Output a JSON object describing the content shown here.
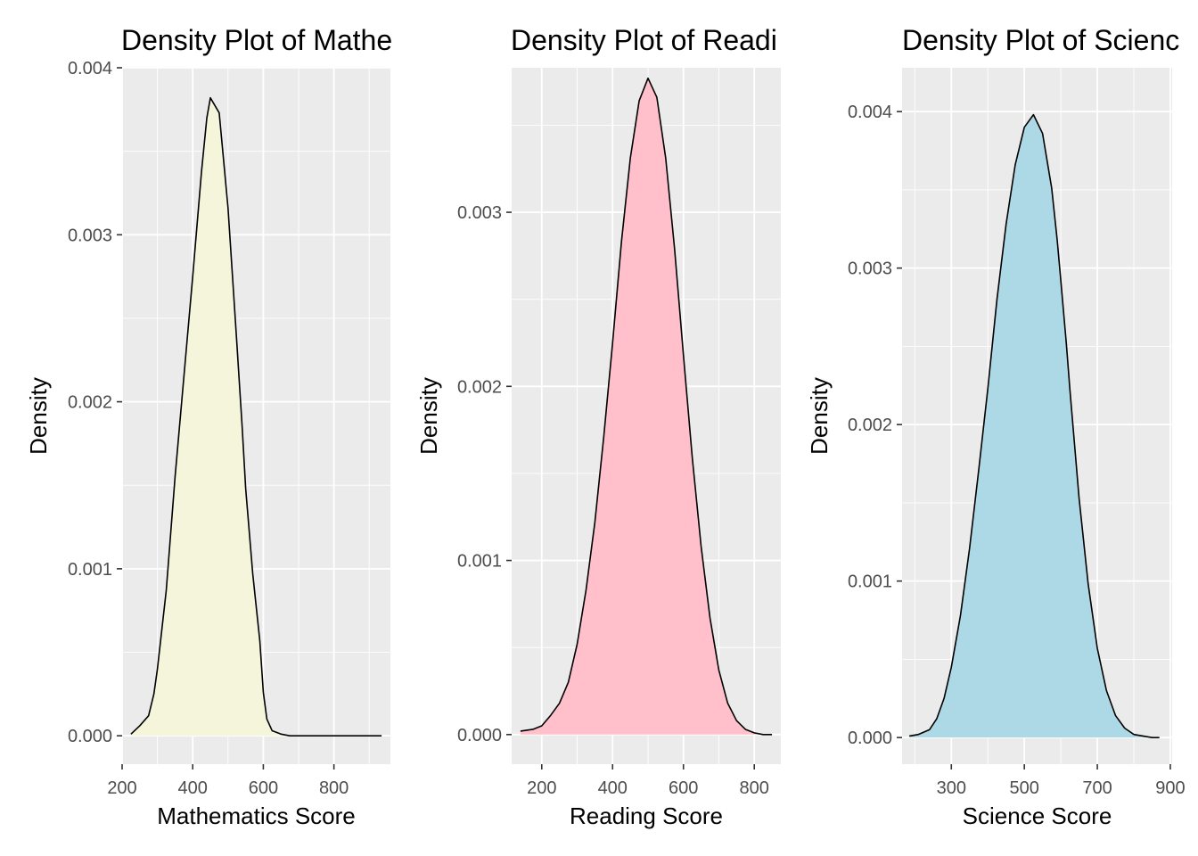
{
  "chart_data": [
    {
      "type": "area",
      "title": "Density Plot of Mathe",
      "xlabel": "Mathematics Score",
      "ylabel": "Density",
      "fill_color": "#f5f5dc",
      "line_color": "#000000",
      "xlim": [
        200,
        960
      ],
      "ylim": [
        -0.00017,
        0.004
      ],
      "x_ticks": [
        200,
        400,
        600,
        800
      ],
      "x_tick_labels": [
        "200",
        "400",
        "600",
        "800"
      ],
      "y_ticks": [
        0,
        0.001,
        0.002,
        0.003,
        0.004
      ],
      "y_tick_labels": [
        "0.000",
        "0.001",
        "0.002",
        "0.003",
        "0.004"
      ],
      "grid": true,
      "x": [
        225,
        250,
        275,
        290,
        300,
        325,
        350,
        375,
        400,
        425,
        440,
        450,
        475,
        500,
        525,
        540,
        550,
        570,
        590,
        600,
        610,
        625,
        650,
        675,
        700,
        725,
        750,
        775,
        800,
        825,
        850,
        875,
        900,
        935
      ],
      "y": [
        1e-05,
        6e-05,
        0.00012,
        0.00025,
        0.0004,
        0.00087,
        0.00155,
        0.00215,
        0.00275,
        0.00338,
        0.0037,
        0.00382,
        0.00373,
        0.00316,
        0.00235,
        0.00185,
        0.00148,
        0.00097,
        0.00057,
        0.00026,
        0.0001,
        3e-05,
        1e-05,
        0.0,
        0.0,
        0.0,
        0.0,
        0.0,
        0.0,
        0.0,
        0.0,
        0.0,
        0.0,
        0.0
      ]
    },
    {
      "type": "area",
      "title": "Density Plot of Readi",
      "xlabel": "Reading Score",
      "ylabel": "Density",
      "fill_color": "#ffc0cb",
      "line_color": "#000000",
      "xlim": [
        115,
        875
      ],
      "ylim": [
        -0.00017,
        0.00383
      ],
      "x_ticks": [
        200,
        400,
        600,
        800
      ],
      "x_tick_labels": [
        "200",
        "400",
        "600",
        "800"
      ],
      "y_ticks": [
        0,
        0.001,
        0.002,
        0.003
      ],
      "y_tick_labels": [
        "0.000",
        "0.001",
        "0.002",
        "0.003"
      ],
      "grid": true,
      "x": [
        140,
        175,
        200,
        225,
        250,
        275,
        300,
        325,
        350,
        375,
        400,
        425,
        450,
        475,
        500,
        525,
        550,
        575,
        600,
        625,
        650,
        675,
        700,
        725,
        750,
        775,
        800,
        825,
        850
      ],
      "y": [
        2e-05,
        3e-05,
        5e-05,
        0.00011,
        0.00018,
        0.0003,
        0.00052,
        0.00083,
        0.00122,
        0.00171,
        0.00225,
        0.00283,
        0.00331,
        0.00364,
        0.00377,
        0.00366,
        0.00331,
        0.00279,
        0.00218,
        0.00159,
        0.00108,
        0.00067,
        0.00037,
        0.00018,
        8e-05,
        3e-05,
        1e-05,
        0.0,
        0.0
      ]
    },
    {
      "type": "area",
      "title": "Density Plot of Scienc",
      "xlabel": "Science Score",
      "ylabel": "Density",
      "fill_color": "#add8e6",
      "line_color": "#000000",
      "xlim": [
        165,
        905
      ],
      "ylim": [
        -0.00017,
        0.00428
      ],
      "x_ticks": [
        300,
        500,
        700,
        900
      ],
      "x_tick_labels": [
        "300",
        "500",
        "700",
        "900"
      ],
      "y_ticks": [
        0,
        0.001,
        0.002,
        0.003,
        0.004
      ],
      "y_tick_labels": [
        "0.000",
        "0.001",
        "0.002",
        "0.003",
        "0.004"
      ],
      "grid": true,
      "x": [
        185,
        210,
        240,
        260,
        280,
        300,
        325,
        350,
        375,
        400,
        425,
        450,
        475,
        500,
        525,
        550,
        575,
        590,
        600,
        615,
        625,
        650,
        675,
        700,
        725,
        750,
        775,
        800,
        825,
        850,
        870
      ],
      "y": [
        1e-05,
        2e-05,
        5e-05,
        0.00012,
        0.00025,
        0.00045,
        0.00078,
        0.00121,
        0.00171,
        0.00223,
        0.0028,
        0.00328,
        0.00366,
        0.0039,
        0.00398,
        0.00386,
        0.00351,
        0.00318,
        0.00292,
        0.00252,
        0.00222,
        0.00153,
        0.00098,
        0.00057,
        0.0003,
        0.00014,
        6e-05,
        2e-05,
        1e-05,
        0.0,
        0.0
      ]
    }
  ]
}
